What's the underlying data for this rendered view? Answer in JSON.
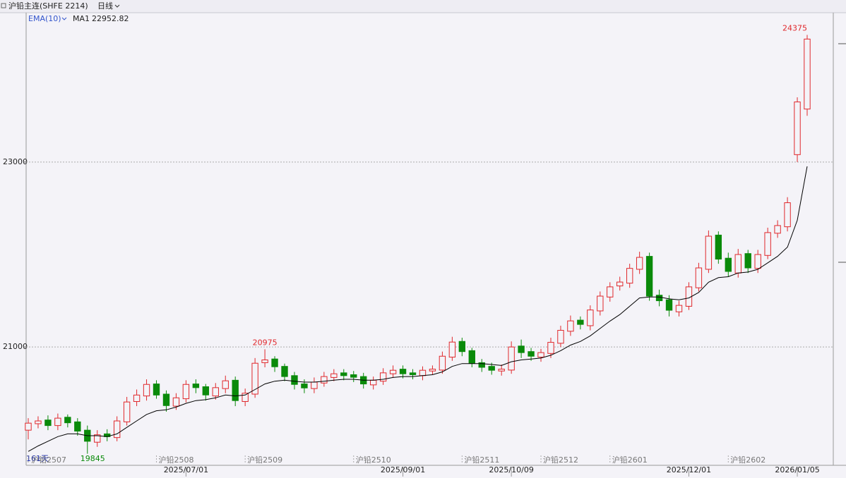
{
  "chart_data": {
    "type": "candlestick",
    "title": "沪铅主连(SHFE 2214)",
    "period": "日线",
    "indicator": "EMA(10)",
    "days_label": "161天",
    "categories": [
      "沪铅2507",
      null,
      null,
      null,
      null,
      null,
      null,
      null,
      null,
      null,
      null,
      null,
      null,
      null,
      null,
      null,
      "2025/07/01",
      null,
      null,
      null,
      null,
      null,
      null,
      null,
      null,
      null,
      null,
      null,
      null,
      null,
      null,
      null,
      null,
      null,
      null,
      null,
      null,
      null,
      "2025/09/01",
      null,
      null,
      null,
      null,
      null,
      null,
      null,
      null,
      null,
      null,
      "2025/10/09",
      null,
      null,
      null,
      null,
      null,
      null,
      null,
      null,
      null,
      null,
      null,
      null,
      null,
      null,
      null,
      null,
      null,
      "2025/12/01",
      null,
      null,
      null,
      null,
      null,
      null,
      null,
      null,
      null,
      null,
      "2026/01/05",
      null
    ],
    "contracts": [
      null,
      null,
      null,
      null,
      null,
      null,
      null,
      null,
      null,
      null,
      null,
      null,
      null,
      "沪铅2508",
      null,
      null,
      null,
      null,
      null,
      null,
      null,
      null,
      "沪铅2509",
      null,
      null,
      null,
      null,
      null,
      null,
      null,
      null,
      null,
      null,
      "沪铅2510",
      null,
      null,
      null,
      null,
      null,
      null,
      null,
      null,
      null,
      null,
      "沪铅2511",
      null,
      null,
      null,
      null,
      null,
      null,
      null,
      "沪铅2512",
      null,
      null,
      null,
      null,
      null,
      null,
      "沪铅2601",
      null,
      null,
      null,
      null,
      null,
      null,
      null,
      null,
      null,
      null,
      null,
      "沪铅2602",
      null,
      null,
      null,
      null,
      null,
      null,
      null,
      null
    ],
    "open": [
      20100,
      20170,
      20210,
      20150,
      20240,
      20190,
      20100,
      19970,
      20060,
      20020,
      20190,
      20410,
      20470,
      20600,
      20490,
      20360,
      20440,
      20600,
      20570,
      20470,
      20550,
      20640,
      20410,
      20490,
      20830,
      20870,
      20790,
      20690,
      20600,
      20550,
      20610,
      20670,
      20720,
      20700,
      20680,
      20590,
      20630,
      20710,
      20760,
      20720,
      20690,
      20740,
      20750,
      20890,
      21060,
      20960,
      20830,
      20790,
      20740,
      20750,
      21010,
      20950,
      20890,
      20930,
      21040,
      21170,
      21290,
      21230,
      21390,
      21540,
      21660,
      21690,
      21840,
      21980,
      21560,
      21510,
      21380,
      21440,
      21640,
      21840,
      22210,
      21960,
      21800,
      22010,
      21850,
      21990,
      22230,
      22300,
      23080,
      23573
    ],
    "high": [
      20230,
      20250,
      20260,
      20280,
      20270,
      20230,
      20150,
      20100,
      20110,
      20250,
      20460,
      20540,
      20650,
      20640,
      20530,
      20500,
      20640,
      20650,
      20600,
      20610,
      20690,
      20680,
      20550,
      20880,
      20975,
      20900,
      20820,
      20730,
      20650,
      20670,
      20730,
      20760,
      20760,
      20740,
      20720,
      20680,
      20770,
      20800,
      20800,
      20760,
      20790,
      20800,
      20950,
      21110,
      21100,
      20990,
      20870,
      20830,
      20810,
      21060,
      21080,
      20990,
      20980,
      21100,
      21230,
      21340,
      21330,
      21450,
      21600,
      21700,
      21760,
      21900,
      22030,
      22020,
      21620,
      21560,
      21500,
      21700,
      21910,
      22260,
      22250,
      22020,
      22060,
      22050,
      22050,
      22290,
      22370,
      22620,
      23700,
      24375
    ],
    "low": [
      20000,
      20120,
      20100,
      20100,
      20130,
      20040,
      19845,
      19920,
      19980,
      19980,
      20150,
      20360,
      20420,
      20440,
      20300,
      20320,
      20400,
      20500,
      20420,
      20430,
      20500,
      20360,
      20360,
      20450,
      20780,
      20730,
      20630,
      20540,
      20500,
      20500,
      20570,
      20630,
      20640,
      20620,
      20550,
      20540,
      20590,
      20670,
      20660,
      20650,
      20640,
      20700,
      20710,
      20850,
      20900,
      20780,
      20730,
      20700,
      20690,
      20710,
      20880,
      20850,
      20840,
      20880,
      21000,
      21120,
      21190,
      21180,
      21340,
      21490,
      21610,
      21640,
      21790,
      21500,
      21440,
      21330,
      21330,
      21400,
      21600,
      21800,
      21900,
      21760,
      21750,
      21800,
      21800,
      21950,
      22180,
      22250,
      23000,
      23500
    ],
    "close": [
      20176,
      20200,
      20150,
      20230,
      20180,
      20090,
      19980,
      20050,
      20030,
      20200,
      20405,
      20480,
      20595,
      20480,
      20366,
      20450,
      20595,
      20560,
      20481,
      20560,
      20634,
      20420,
      20500,
      20824,
      20860,
      20786,
      20680,
      20595,
      20557,
      20620,
      20680,
      20710,
      20690,
      20672,
      20600,
      20640,
      20720,
      20748,
      20710,
      20700,
      20748,
      20760,
      20900,
      21053,
      20950,
      20824,
      20780,
      20748,
      20760,
      21000,
      20939,
      20900,
      20939,
      21050,
      21180,
      21282,
      21244,
      21400,
      21550,
      21650,
      21702,
      21850,
      21969,
      21550,
      21500,
      21397,
      21450,
      21650,
      21855,
      22198,
      21950,
      21817,
      22000,
      21855,
      22000,
      22237,
      22313,
      22560,
      23650,
      24330
    ],
    "ema": {
      "name": "MA1",
      "color": "#000000",
      "values": [
        19870,
        19930,
        19980,
        20030,
        20060,
        20060,
        20040,
        20040,
        20030,
        20060,
        20130,
        20200,
        20270,
        20310,
        20320,
        20350,
        20390,
        20420,
        20430,
        20450,
        20480,
        20470,
        20480,
        20540,
        20600,
        20630,
        20640,
        20630,
        20620,
        20620,
        20630,
        20640,
        20650,
        20650,
        20640,
        20640,
        20650,
        20670,
        20680,
        20680,
        20690,
        20700,
        20730,
        20790,
        20820,
        20820,
        20820,
        20810,
        20800,
        20840,
        20860,
        20870,
        20880,
        20910,
        20960,
        21020,
        21060,
        21120,
        21200,
        21280,
        21350,
        21440,
        21530,
        21540,
        21540,
        21520,
        21510,
        21530,
        21590,
        21700,
        21750,
        21760,
        21800,
        21810,
        21840,
        21910,
        21980,
        22080,
        22370,
        22952.82
      ]
    },
    "up_color": "#e0282c",
    "down_color": "#0a8a0a",
    "ylim": [
      19720,
      24600
    ],
    "yticks": [
      21000,
      23000
    ],
    "grid": true
  }
}
